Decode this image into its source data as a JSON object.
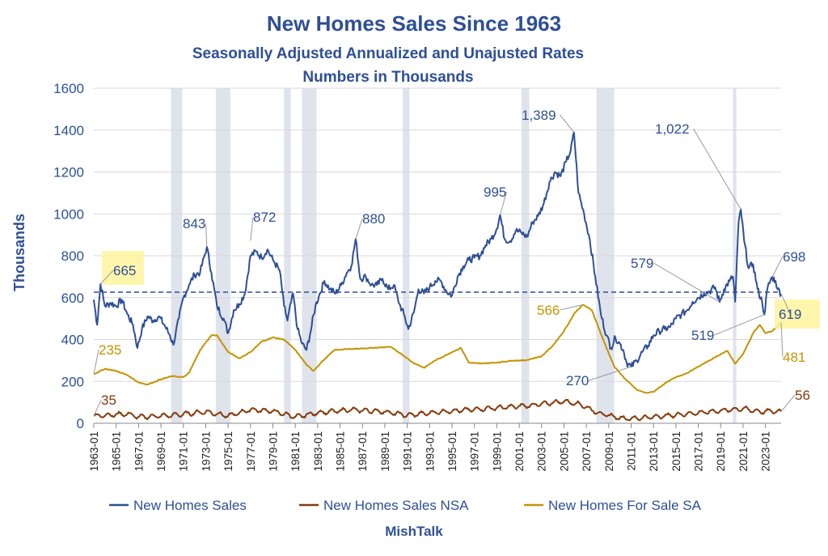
{
  "chart_data": {
    "type": "line",
    "title": "New Homes Sales Since 1963",
    "subtitle_1": "Seasonally Adjusted Annualized and Unajusted Rates",
    "subtitle_2": "Numbers in Thousands",
    "ylabel": "Thousands",
    "ylim": [
      0,
      1600
    ],
    "yticks": [
      "0",
      "200",
      "400",
      "600",
      "800",
      "1000",
      "1200",
      "1400",
      "1600"
    ],
    "xlim": [
      1963.0,
      2024.4
    ],
    "xticks": [
      "1963-01",
      "1965-01",
      "1967-01",
      "1969-01",
      "1971-01",
      "1973-01",
      "1975-01",
      "1977-01",
      "1979-01",
      "1981-01",
      "1983-01",
      "1985-01",
      "1987-01",
      "1989-01",
      "1991-01",
      "1993-01",
      "1995-01",
      "1997-01",
      "1999-01",
      "2001-01",
      "2003-01",
      "2005-01",
      "2007-01",
      "2009-01",
      "2011-01",
      "2013-01",
      "2015-01",
      "2017-01",
      "2019-01",
      "2021-01",
      "2023-01"
    ],
    "grid": "horizontal",
    "legend_position": "bottom",
    "reference_line": 626,
    "recessions": [
      [
        1969.9,
        1970.9
      ],
      [
        1973.9,
        1975.2
      ],
      [
        1980.0,
        1980.6
      ],
      [
        1981.6,
        1982.9
      ],
      [
        1990.6,
        1991.2
      ],
      [
        2001.2,
        2001.9
      ],
      [
        2007.9,
        2009.5
      ],
      [
        2020.1,
        2020.4
      ]
    ],
    "series": [
      {
        "name": "New Homes Sales",
        "color": "#2e4f96",
        "points": [
          [
            1963.0,
            591
          ],
          [
            1963.3,
            470
          ],
          [
            1963.6,
            665
          ],
          [
            1964.0,
            560
          ],
          [
            1964.5,
            575
          ],
          [
            1965.0,
            560
          ],
          [
            1965.5,
            590
          ],
          [
            1966.0,
            520
          ],
          [
            1966.5,
            470
          ],
          [
            1966.9,
            360
          ],
          [
            1967.3,
            450
          ],
          [
            1967.8,
            510
          ],
          [
            1968.3,
            490
          ],
          [
            1968.8,
            510
          ],
          [
            1969.3,
            470
          ],
          [
            1969.8,
            420
          ],
          [
            1970.1,
            375
          ],
          [
            1970.6,
            500
          ],
          [
            1971.0,
            600
          ],
          [
            1971.5,
            660
          ],
          [
            1972.0,
            710
          ],
          [
            1972.5,
            720
          ],
          [
            1973.1,
            843
          ],
          [
            1973.5,
            720
          ],
          [
            1974.0,
            560
          ],
          [
            1974.6,
            500
          ],
          [
            1975.0,
            430
          ],
          [
            1975.5,
            540
          ],
          [
            1976.0,
            570
          ],
          [
            1976.5,
            620
          ],
          [
            1977.0,
            800
          ],
          [
            1977.5,
            820
          ],
          [
            1978.0,
            790
          ],
          [
            1978.5,
            830
          ],
          [
            1979.0,
            780
          ],
          [
            1979.6,
            730
          ],
          [
            1980.0,
            560
          ],
          [
            1980.3,
            490
          ],
          [
            1980.8,
            620
          ],
          [
            1981.2,
            450
          ],
          [
            1981.6,
            380
          ],
          [
            1982.0,
            350
          ],
          [
            1982.3,
            420
          ],
          [
            1982.8,
            560
          ],
          [
            1983.2,
            620
          ],
          [
            1983.6,
            680
          ],
          [
            1984.1,
            640
          ],
          [
            1984.6,
            620
          ],
          [
            1985.1,
            660
          ],
          [
            1985.6,
            720
          ],
          [
            1986.0,
            750
          ],
          [
            1986.4,
            880
          ],
          [
            1986.8,
            690
          ],
          [
            1987.3,
            700
          ],
          [
            1987.8,
            660
          ],
          [
            1988.3,
            660
          ],
          [
            1988.8,
            690
          ],
          [
            1989.3,
            640
          ],
          [
            1989.8,
            660
          ],
          [
            1990.3,
            570
          ],
          [
            1990.7,
            520
          ],
          [
            1991.1,
            450
          ],
          [
            1991.6,
            530
          ],
          [
            1992.0,
            640
          ],
          [
            1992.5,
            620
          ],
          [
            1993.0,
            650
          ],
          [
            1993.5,
            680
          ],
          [
            1994.0,
            680
          ],
          [
            1994.5,
            630
          ],
          [
            1995.0,
            610
          ],
          [
            1995.5,
            700
          ],
          [
            1996.0,
            750
          ],
          [
            1996.5,
            780
          ],
          [
            1997.0,
            790
          ],
          [
            1997.5,
            800
          ],
          [
            1998.0,
            850
          ],
          [
            1998.5,
            880
          ],
          [
            1999.0,
            930
          ],
          [
            1999.3,
            995
          ],
          [
            1999.7,
            880
          ],
          [
            2000.2,
            870
          ],
          [
            2000.7,
            920
          ],
          [
            2001.2,
            910
          ],
          [
            2001.7,
            890
          ],
          [
            2002.2,
            960
          ],
          [
            2002.7,
            990
          ],
          [
            2003.2,
            1050
          ],
          [
            2003.7,
            1150
          ],
          [
            2004.2,
            1200
          ],
          [
            2004.7,
            1180
          ],
          [
            2005.2,
            1250
          ],
          [
            2005.6,
            1300
          ],
          [
            2005.9,
            1389
          ],
          [
            2006.3,
            1100
          ],
          [
            2006.8,
            1000
          ],
          [
            2007.3,
            880
          ],
          [
            2007.8,
            700
          ],
          [
            2008.3,
            520
          ],
          [
            2008.8,
            420
          ],
          [
            2009.2,
            360
          ],
          [
            2009.6,
            410
          ],
          [
            2010.0,
            380
          ],
          [
            2010.3,
            350
          ],
          [
            2010.6,
            290
          ],
          [
            2011.0,
            270
          ],
          [
            2011.5,
            300
          ],
          [
            2012.0,
            340
          ],
          [
            2012.5,
            370
          ],
          [
            2013.0,
            420
          ],
          [
            2013.5,
            440
          ],
          [
            2014.0,
            450
          ],
          [
            2014.5,
            460
          ],
          [
            2015.0,
            500
          ],
          [
            2015.5,
            520
          ],
          [
            2016.0,
            540
          ],
          [
            2016.5,
            580
          ],
          [
            2017.0,
            600
          ],
          [
            2017.5,
            620
          ],
          [
            2018.0,
            630
          ],
          [
            2018.5,
            650
          ],
          [
            2018.9,
            579
          ],
          [
            2019.3,
            640
          ],
          [
            2019.8,
            680
          ],
          [
            2020.1,
            700
          ],
          [
            2020.3,
            580
          ],
          [
            2020.6,
            960
          ],
          [
            2020.8,
            1022
          ],
          [
            2021.1,
            870
          ],
          [
            2021.5,
            740
          ],
          [
            2021.9,
            760
          ],
          [
            2022.3,
            640
          ],
          [
            2022.7,
            580
          ],
          [
            2022.9,
            519
          ],
          [
            2023.2,
            650
          ],
          [
            2023.6,
            698
          ],
          [
            2023.9,
            680
          ],
          [
            2024.1,
            640
          ],
          [
            2024.4,
            619
          ]
        ]
      },
      {
        "name": "New Homes Sales NSA",
        "color": "#843c0c",
        "points": [
          [
            1963.0,
            35
          ],
          [
            1966.0,
            45
          ],
          [
            1967.0,
            30
          ],
          [
            1970.0,
            38
          ],
          [
            1973.0,
            55
          ],
          [
            1975.0,
            35
          ],
          [
            1977.0,
            65
          ],
          [
            1979.0,
            58
          ],
          [
            1981.0,
            30
          ],
          [
            1983.0,
            50
          ],
          [
            1986.0,
            65
          ],
          [
            1989.0,
            55
          ],
          [
            1991.0,
            38
          ],
          [
            1994.0,
            55
          ],
          [
            1998.0,
            70
          ],
          [
            2002.0,
            85
          ],
          [
            2005.0,
            105
          ],
          [
            2006.5,
            90
          ],
          [
            2008.0,
            50
          ],
          [
            2010.0,
            25
          ],
          [
            2011.0,
            22
          ],
          [
            2014.0,
            35
          ],
          [
            2017.0,
            50
          ],
          [
            2020.0,
            65
          ],
          [
            2021.0,
            70
          ],
          [
            2022.5,
            55
          ],
          [
            2023.5,
            58
          ],
          [
            2024.4,
            56
          ]
        ]
      },
      {
        "name": "New Homes For Sale SA",
        "color": "#c49400",
        "points": [
          [
            1963.0,
            235
          ],
          [
            1964.0,
            260
          ],
          [
            1965.0,
            250
          ],
          [
            1966.0,
            230
          ],
          [
            1967.0,
            195
          ],
          [
            1967.8,
            185
          ],
          [
            1969.0,
            210
          ],
          [
            1970.0,
            225
          ],
          [
            1971.0,
            220
          ],
          [
            1971.5,
            240
          ],
          [
            1972.5,
            350
          ],
          [
            1973.5,
            420
          ],
          [
            1974.0,
            420
          ],
          [
            1975.0,
            340
          ],
          [
            1976.0,
            310
          ],
          [
            1977.0,
            340
          ],
          [
            1978.0,
            390
          ],
          [
            1979.0,
            410
          ],
          [
            1980.0,
            400
          ],
          [
            1981.0,
            350
          ],
          [
            1982.0,
            280
          ],
          [
            1982.6,
            250
          ],
          [
            1983.5,
            300
          ],
          [
            1984.5,
            350
          ],
          [
            1986.0,
            355
          ],
          [
            1988.0,
            360
          ],
          [
            1989.5,
            365
          ],
          [
            1990.5,
            330
          ],
          [
            1991.5,
            290
          ],
          [
            1992.5,
            265
          ],
          [
            1993.5,
            300
          ],
          [
            1995.0,
            340
          ],
          [
            1995.8,
            360
          ],
          [
            1996.5,
            290
          ],
          [
            1997.5,
            285
          ],
          [
            1999.0,
            290
          ],
          [
            2000.5,
            300
          ],
          [
            2001.5,
            300
          ],
          [
            2003.0,
            320
          ],
          [
            2004.0,
            370
          ],
          [
            2005.0,
            440
          ],
          [
            2006.0,
            530
          ],
          [
            2006.7,
            566
          ],
          [
            2007.5,
            540
          ],
          [
            2008.5,
            400
          ],
          [
            2009.5,
            270
          ],
          [
            2010.5,
            210
          ],
          [
            2011.5,
            160
          ],
          [
            2012.3,
            145
          ],
          [
            2013.0,
            150
          ],
          [
            2014.0,
            190
          ],
          [
            2015.0,
            220
          ],
          [
            2016.0,
            240
          ],
          [
            2017.0,
            270
          ],
          [
            2018.0,
            300
          ],
          [
            2019.0,
            330
          ],
          [
            2019.6,
            345
          ],
          [
            2020.3,
            285
          ],
          [
            2021.0,
            330
          ],
          [
            2022.0,
            440
          ],
          [
            2022.5,
            470
          ],
          [
            2023.0,
            430
          ],
          [
            2023.6,
            440
          ],
          [
            2024.4,
            481
          ]
        ]
      }
    ],
    "annotations": [
      {
        "label": "665",
        "value": 665,
        "series": "New Homes Sales"
      },
      {
        "label": "843",
        "value": 843,
        "series": "New Homes Sales"
      },
      {
        "label": "872",
        "value": 872,
        "series": "New Homes Sales"
      },
      {
        "label": "880",
        "value": 880,
        "series": "New Homes Sales"
      },
      {
        "label": "995",
        "value": 995,
        "series": "New Homes Sales"
      },
      {
        "label": "1,389",
        "value": 1389,
        "series": "New Homes Sales"
      },
      {
        "label": "1,022",
        "value": 1022,
        "series": "New Homes Sales"
      },
      {
        "label": "579",
        "value": 579,
        "series": "New Homes Sales"
      },
      {
        "label": "698",
        "value": 698,
        "series": "New Homes Sales"
      },
      {
        "label": "519",
        "value": 519,
        "series": "New Homes Sales"
      },
      {
        "label": "619",
        "value": 619,
        "series": "New Homes Sales"
      },
      {
        "label": "270",
        "value": 270,
        "series": "New Homes Sales"
      },
      {
        "label": "235",
        "value": 235,
        "series": "New Homes For Sale SA"
      },
      {
        "label": "566",
        "value": 566,
        "series": "New Homes For Sale SA"
      },
      {
        "label": "481",
        "value": 481,
        "series": "New Homes For Sale SA"
      },
      {
        "label": "35",
        "value": 35,
        "series": "New Homes Sales NSA"
      },
      {
        "label": "56",
        "value": 56,
        "series": "New Homes Sales NSA"
      }
    ],
    "footer": "MishTalk"
  }
}
